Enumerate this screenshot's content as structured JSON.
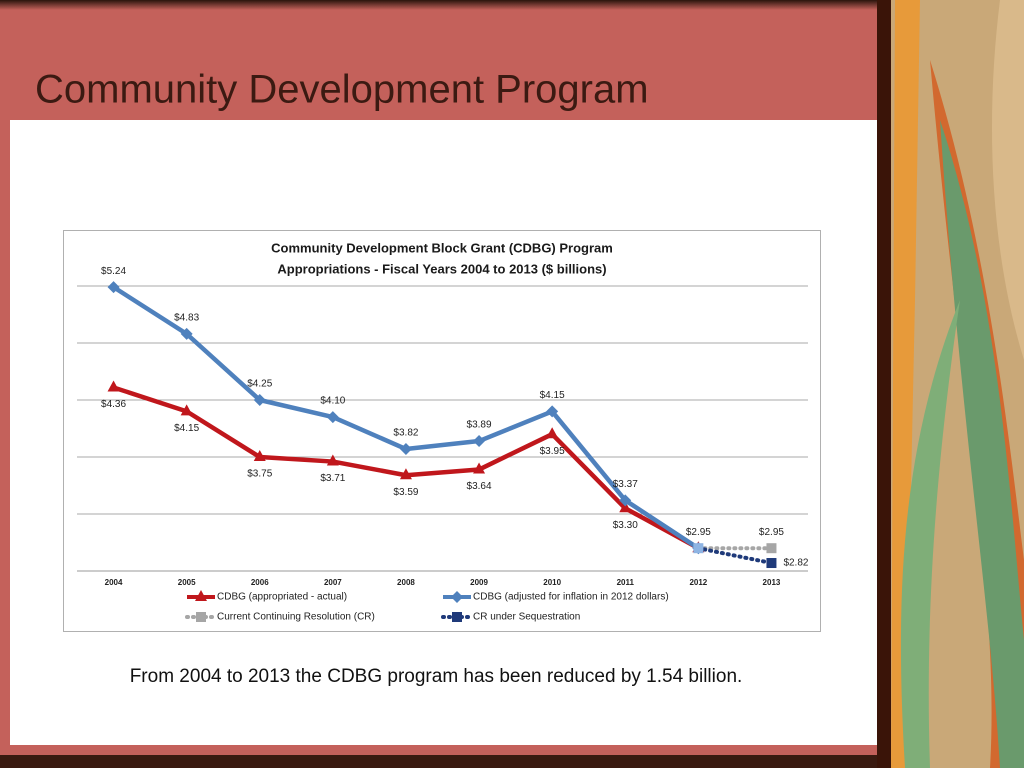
{
  "slide": {
    "title": "Community Development Program",
    "caption": "From 2004 to 2013 the CDBG program has been reduced by 1.54 billion."
  },
  "chart_data": {
    "type": "line",
    "title": [
      "Community Development Block Grant (CDBG) Program",
      "Appropriations - Fiscal Years 2004 to 2013 ($ billions)"
    ],
    "categories": [
      "2004",
      "2005",
      "2006",
      "2007",
      "2008",
      "2009",
      "2010",
      "2011",
      "2012",
      "2013"
    ],
    "ylim": [
      2.75,
      5.5
    ],
    "yticks": [
      2.75,
      3.25,
      3.75,
      4.25,
      4.75,
      5.25
    ],
    "grid": true,
    "series": [
      {
        "name": "CDBG (appropriated - actual)",
        "color": "#c0171c",
        "marker": "triangle",
        "dash": "solid",
        "label_side": "below",
        "values": [
          4.36,
          4.15,
          3.75,
          3.71,
          3.59,
          3.64,
          3.95,
          3.3,
          2.95,
          null
        ],
        "value_labels": [
          "$4.36",
          "$4.15",
          "$3.75",
          "$3.71",
          "$3.59",
          "$3.64",
          "$3.95",
          "$3.30",
          null,
          null
        ]
      },
      {
        "name": "CDBG (adjusted for inflation in 2012 dollars)",
        "color": "#4f81bd",
        "marker": "diamond",
        "dash": "solid",
        "label_side": "above",
        "values": [
          5.24,
          4.83,
          4.25,
          4.1,
          3.82,
          3.89,
          4.15,
          3.37,
          2.95,
          null
        ],
        "value_labels": [
          "$5.24",
          "$4.83",
          "$4.25",
          "$4.10",
          "$3.82",
          "$3.89",
          "$4.15",
          "$3.37",
          "$2.95",
          null
        ]
      },
      {
        "name": "Current Continuing Resolution (CR)",
        "color": "#a6a6a6",
        "marker": "square",
        "dash": "dotted",
        "label_side": "above",
        "values": [
          null,
          null,
          null,
          null,
          null,
          null,
          null,
          null,
          2.95,
          2.95
        ],
        "value_labels": [
          null,
          null,
          null,
          null,
          null,
          null,
          null,
          null,
          null,
          "$2.95"
        ]
      },
      {
        "name": "CR under Sequestration",
        "color": "#1f3a7a",
        "marker": "square",
        "dash": "dotted",
        "label_side": "right",
        "values": [
          null,
          null,
          null,
          null,
          null,
          null,
          null,
          null,
          2.95,
          2.82
        ],
        "value_labels": [
          null,
          null,
          null,
          null,
          null,
          null,
          null,
          null,
          null,
          "$2.82"
        ]
      }
    ]
  }
}
